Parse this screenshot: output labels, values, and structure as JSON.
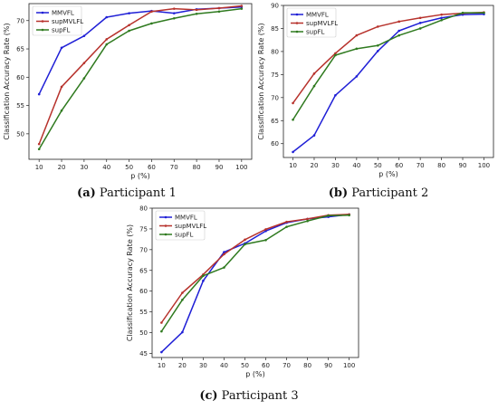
{
  "chart_data": [
    {
      "type": "line",
      "caption_letter": "(a)",
      "caption_text": " Participant 1",
      "xlabel": "p (%)",
      "ylabel": "Classification Accuracy Rate (%)",
      "x": [
        10,
        20,
        30,
        40,
        50,
        60,
        70,
        80,
        90,
        100
      ],
      "xticks": [
        "10",
        "20",
        "30",
        "40",
        "50",
        "60",
        "70",
        "80",
        "90",
        "100"
      ],
      "ylim": [
        45.5,
        73
      ],
      "yticks": [
        50,
        55,
        60,
        65,
        70
      ],
      "legend": "top-left",
      "series": [
        {
          "name": "MMVFL",
          "color": "#1f1fd6",
          "values": [
            57,
            65.2,
            67.3,
            70.6,
            71.3,
            71.7,
            71.3,
            72.0,
            72.2,
            72.4
          ]
        },
        {
          "name": "supMVLFL",
          "color": "#b7322c",
          "values": [
            48.2,
            58.3,
            62.5,
            66.7,
            69.2,
            71.6,
            72.1,
            71.9,
            72.2,
            72.6
          ]
        },
        {
          "name": "supFL",
          "color": "#2f7a1f",
          "values": [
            47.3,
            54.1,
            59.8,
            65.8,
            68.2,
            69.5,
            70.4,
            71.2,
            71.6,
            72.1
          ]
        }
      ]
    },
    {
      "type": "line",
      "caption_letter": "(b)",
      "caption_text": " Participant 2",
      "xlabel": "p (%)",
      "ylabel": "Classification Accuracy Rate (%)",
      "x": [
        10,
        20,
        30,
        40,
        50,
        60,
        70,
        80,
        90,
        100
      ],
      "xticks": [
        "10",
        "20",
        "30",
        "40",
        "50",
        "60",
        "70",
        "80",
        "90",
        "100"
      ],
      "ylim": [
        57,
        90
      ],
      "yticks": [
        60,
        65,
        70,
        75,
        80,
        85,
        90
      ],
      "legend": "top-left",
      "series": [
        {
          "name": "MMVFL",
          "color": "#1f1fd6",
          "values": [
            58.2,
            61.8,
            70.5,
            74.6,
            80.1,
            84.5,
            86.2,
            87.3,
            88.0,
            88.1
          ]
        },
        {
          "name": "supMVLFL",
          "color": "#b7322c",
          "values": [
            68.8,
            75.2,
            79.6,
            83.5,
            85.4,
            86.5,
            87.3,
            88.0,
            88.3,
            88.5
          ]
        },
        {
          "name": "supFL",
          "color": "#2f7a1f",
          "values": [
            65.2,
            72.5,
            79.2,
            80.6,
            81.3,
            83.5,
            85.0,
            86.8,
            88.4,
            88.4
          ]
        }
      ]
    },
    {
      "type": "line",
      "caption_letter": "(c)",
      "caption_text": " Participant 3",
      "xlabel": "p (%)",
      "ylabel": "Classification Accuracy Rate (%)",
      "x": [
        10,
        20,
        30,
        40,
        50,
        60,
        70,
        80,
        90,
        100
      ],
      "xticks": [
        "10",
        "20",
        "30",
        "40",
        "50",
        "60",
        "70",
        "80",
        "90",
        "100"
      ],
      "ylim": [
        44,
        80
      ],
      "yticks": [
        45,
        50,
        55,
        60,
        65,
        70,
        75,
        80
      ],
      "legend": "top-left",
      "series": [
        {
          "name": "MMVFL",
          "color": "#1f1fd6",
          "values": [
            45.3,
            50.1,
            62.5,
            69.4,
            71.5,
            74.5,
            76.5,
            77.4,
            77.9,
            78.5
          ]
        },
        {
          "name": "supMVLFL",
          "color": "#b7322c",
          "values": [
            52.4,
            59.6,
            64.0,
            68.9,
            72.4,
            74.9,
            76.7,
            77.4,
            78.3,
            78.5
          ]
        },
        {
          "name": "supFL",
          "color": "#2f7a1f",
          "values": [
            50.3,
            57.9,
            63.7,
            65.7,
            71.3,
            72.3,
            75.5,
            76.9,
            78.2,
            78.3
          ]
        }
      ]
    }
  ]
}
